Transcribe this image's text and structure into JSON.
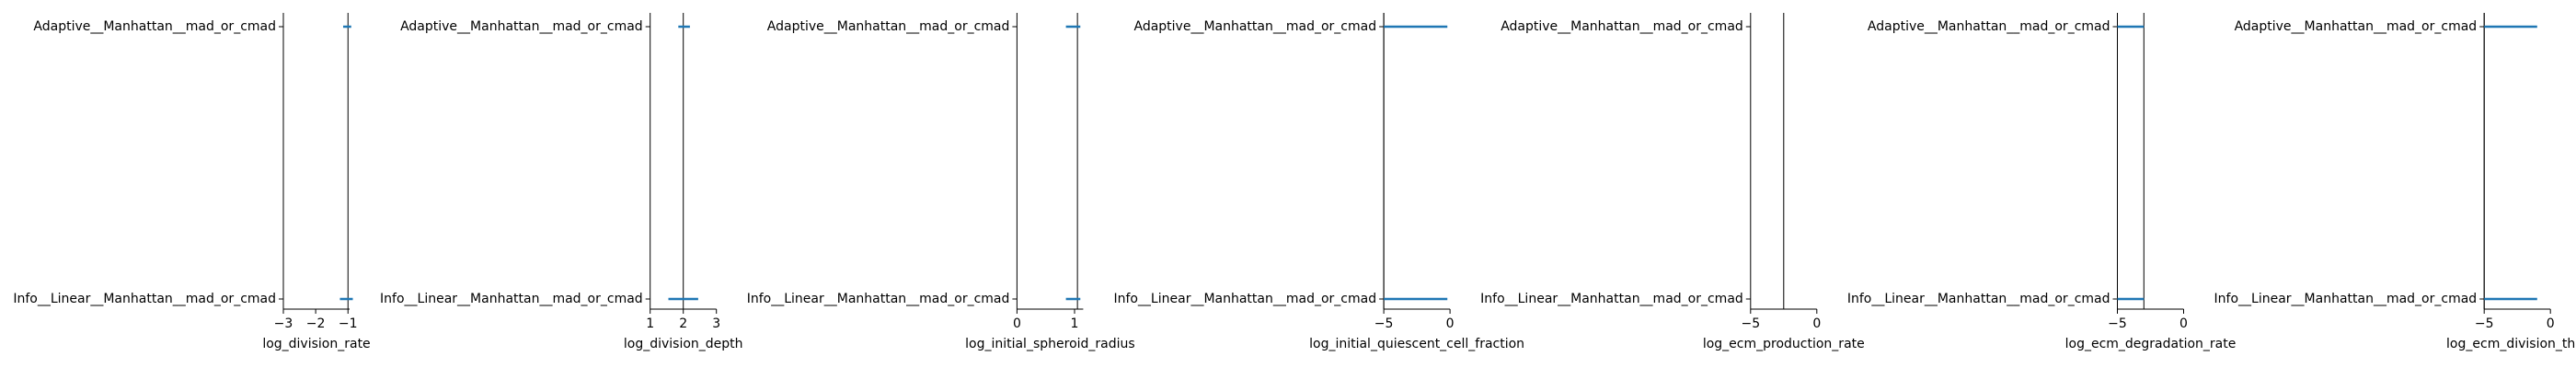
{
  "figure": {
    "background": "#ffffff"
  },
  "style": {
    "axis_color": "#000000",
    "vline_color": "#000000",
    "series_color": "#1f77b4"
  },
  "chart_data": [
    {
      "type": "interval",
      "xlabel": "log_division_rate",
      "categories": [
        "Adaptive__Manhattan__mad_or_cmad",
        "Info__Linear__Manhattan__mad_or_cmad"
      ],
      "intervals": [
        [
          -1.15,
          -0.9
        ],
        [
          -1.25,
          -0.85
        ]
      ],
      "reference": -1.0,
      "xlim": [
        -3.0,
        -0.95
      ],
      "xticks": [
        -3,
        -2,
        -1
      ],
      "xticklabels": [
        "−3",
        "−2",
        "−1"
      ]
    },
    {
      "type": "interval",
      "xlabel": "log_division_depth",
      "categories": [
        "Adaptive__Manhattan__mad_or_cmad",
        "Info__Linear__Manhattan__mad_or_cmad"
      ],
      "intervals": [
        [
          1.85,
          2.2
        ],
        [
          1.55,
          2.45
        ]
      ],
      "reference": 2.0,
      "xlim": [
        1.0,
        3.0
      ],
      "xticks": [
        1,
        2,
        3
      ],
      "xticklabels": [
        "1",
        "2",
        "3"
      ]
    },
    {
      "type": "interval",
      "xlabel": "log_initial_spheroid_radius",
      "categories": [
        "Adaptive__Manhattan__mad_or_cmad",
        "Info__Linear__Manhattan__mad_or_cmad"
      ],
      "intervals": [
        [
          0.85,
          1.1
        ],
        [
          0.85,
          1.1
        ]
      ],
      "reference": 1.05,
      "xlim": [
        0.0,
        1.15
      ],
      "xticks": [
        0,
        1
      ],
      "xticklabels": [
        "0",
        "1"
      ]
    },
    {
      "type": "interval",
      "xlabel": "log_initial_quiescent_cell_fraction",
      "categories": [
        "Adaptive__Manhattan__mad_or_cmad",
        "Info__Linear__Manhattan__mad_or_cmad"
      ],
      "intervals": [
        [
          -5.0,
          -0.2
        ],
        [
          -5.0,
          -0.2
        ]
      ],
      "reference": -5.0,
      "xlim": [
        -5.0,
        0.0
      ],
      "xticks": [
        -5,
        0
      ],
      "xticklabels": [
        "−5",
        "0"
      ]
    },
    {
      "type": "interval",
      "xlabel": "log_ecm_production_rate",
      "categories": [
        "Adaptive__Manhattan__mad_or_cmad",
        "Info__Linear__Manhattan__mad_or_cmad"
      ],
      "intervals": [],
      "reference": -2.5,
      "xlim": [
        -5.0,
        0.0
      ],
      "xticks": [
        -5,
        0
      ],
      "xticklabels": [
        "−5",
        "0"
      ]
    },
    {
      "type": "interval",
      "xlabel": "log_ecm_degradation_rate",
      "categories": [
        "Adaptive__Manhattan__mad_or_cmad",
        "Info__Linear__Manhattan__mad_or_cmad"
      ],
      "intervals": [
        [
          -5.0,
          -3.0
        ],
        [
          -5.0,
          -3.0
        ]
      ],
      "reference": -3.0,
      "xlim": [
        -5.0,
        0.0
      ],
      "xticks": [
        -5,
        0
      ],
      "xticklabels": [
        "−5",
        "0"
      ]
    },
    {
      "type": "interval",
      "xlabel": "log_ecm_division_thre",
      "categories": [
        "Adaptive__Manhattan__mad_or_cmad",
        "Info__Linear__Manhattan__mad_or_cmad"
      ],
      "intervals": [
        [
          -5.0,
          -1.0
        ],
        [
          -5.0,
          -1.0
        ]
      ],
      "reference": -5.0,
      "xlim": [
        -5.0,
        0.0
      ],
      "xticks": [
        -5,
        0
      ],
      "xticklabels": [
        "−5",
        "0"
      ]
    }
  ]
}
